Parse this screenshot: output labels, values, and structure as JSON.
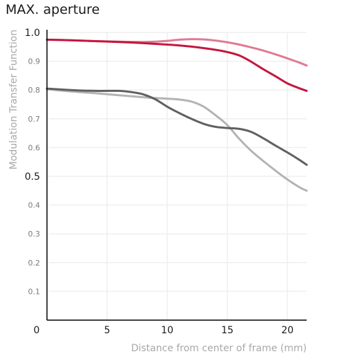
{
  "chart_data": {
    "type": "line",
    "title": "MAX. aperture",
    "xlabel": "Distance from center of frame (mm)",
    "ylabel": "Modulation Transfer Function",
    "xlim": [
      0,
      21.6
    ],
    "ylim": [
      0,
      1.0
    ],
    "grid": true,
    "x_ticks": [
      {
        "value": 0,
        "label": "0"
      },
      {
        "value": 5,
        "label": "5"
      },
      {
        "value": 10,
        "label": "10"
      },
      {
        "value": 15,
        "label": "15"
      },
      {
        "value": 20,
        "label": "20"
      }
    ],
    "y_ticks": [
      {
        "value": 0.1,
        "label": "0.1",
        "major": false
      },
      {
        "value": 0.2,
        "label": "0.2",
        "major": false
      },
      {
        "value": 0.3,
        "label": "0.3",
        "major": false
      },
      {
        "value": 0.4,
        "label": "0.4",
        "major": false
      },
      {
        "value": 0.5,
        "label": "0.5",
        "major": true
      },
      {
        "value": 0.6,
        "label": "0.6",
        "major": false
      },
      {
        "value": 0.7,
        "label": "0.7",
        "major": false
      },
      {
        "value": 0.8,
        "label": "0.8",
        "major": false
      },
      {
        "value": 0.9,
        "label": "0.9",
        "major": false
      },
      {
        "value": 1.0,
        "label": "1.0",
        "major": true
      }
    ],
    "series": [
      {
        "color": "#e07a94",
        "x": [
          0,
          2,
          4,
          6,
          8,
          9,
          10,
          11,
          12,
          13,
          14,
          15,
          16,
          17,
          18,
          19,
          20,
          21,
          21.6
        ],
        "y": [
          0.975,
          0.973,
          0.97,
          0.968,
          0.967,
          0.968,
          0.971,
          0.975,
          0.977,
          0.976,
          0.972,
          0.966,
          0.958,
          0.948,
          0.937,
          0.924,
          0.91,
          0.895,
          0.885
        ]
      },
      {
        "color": "#c4163f",
        "x": [
          0,
          2,
          4,
          6,
          8,
          10,
          11,
          12,
          13,
          14,
          15,
          16,
          17,
          18,
          19,
          20,
          21,
          21.6
        ],
        "y": [
          0.975,
          0.973,
          0.97,
          0.967,
          0.963,
          0.958,
          0.955,
          0.951,
          0.946,
          0.94,
          0.932,
          0.92,
          0.898,
          0.872,
          0.848,
          0.823,
          0.806,
          0.797
        ]
      },
      {
        "color": "#b3b3b3",
        "x": [
          0,
          2,
          4,
          6,
          8,
          9,
          10,
          11,
          12,
          13,
          14,
          15,
          16,
          17,
          18,
          19,
          20,
          21,
          21.6
        ],
        "y": [
          0.803,
          0.795,
          0.789,
          0.782,
          0.775,
          0.772,
          0.77,
          0.767,
          0.76,
          0.743,
          0.713,
          0.678,
          0.63,
          0.588,
          0.553,
          0.52,
          0.489,
          0.462,
          0.45
        ]
      },
      {
        "color": "#606060",
        "x": [
          0,
          2,
          4,
          6,
          7,
          8,
          9,
          10,
          11,
          12,
          13,
          14,
          15,
          16,
          17,
          18,
          19,
          20,
          21,
          21.6
        ],
        "y": [
          0.805,
          0.8,
          0.797,
          0.797,
          0.793,
          0.785,
          0.768,
          0.742,
          0.72,
          0.7,
          0.683,
          0.672,
          0.668,
          0.665,
          0.654,
          0.632,
          0.607,
          0.583,
          0.557,
          0.54
        ]
      }
    ]
  }
}
